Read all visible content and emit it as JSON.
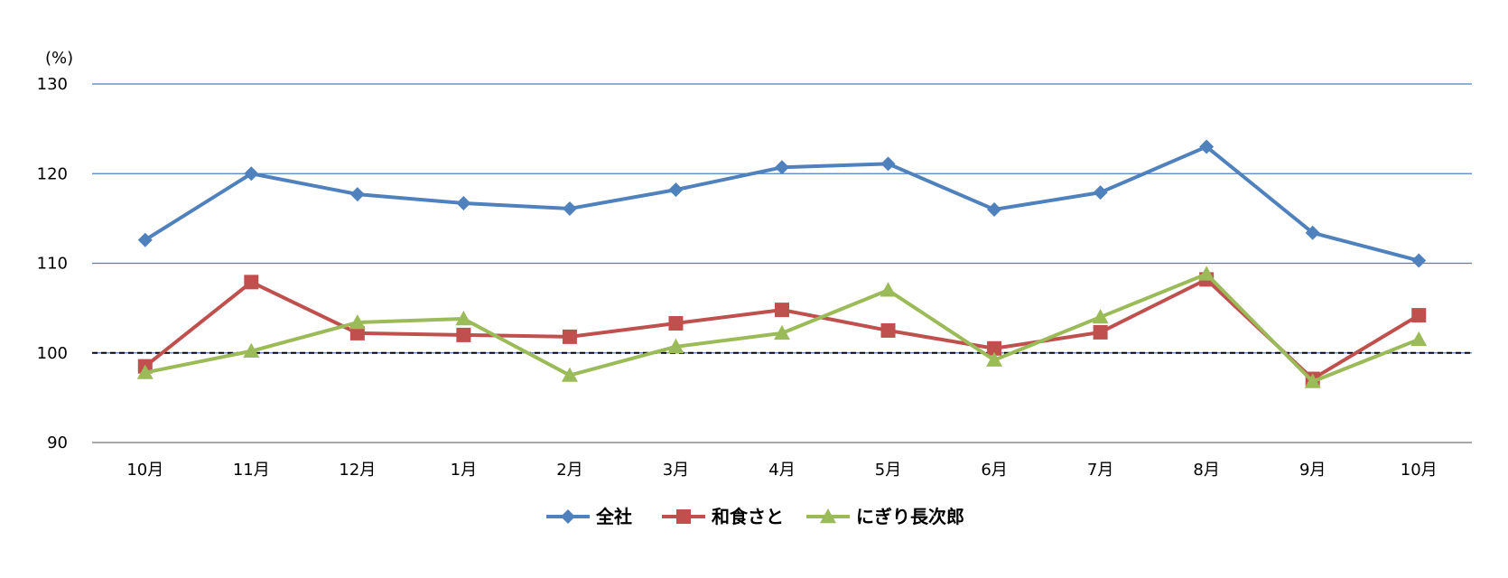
{
  "chart_data": {
    "type": "line",
    "y_unit_label": "(%)",
    "categories": [
      "10月",
      "11月",
      "12月",
      "1月",
      "2月",
      "3月",
      "4月",
      "5月",
      "6月",
      "7月",
      "8月",
      "9月",
      "10月"
    ],
    "ylim": [
      90,
      130
    ],
    "yticks": [
      90,
      100,
      110,
      120,
      130
    ],
    "reference_line": 100,
    "grid": true,
    "legend_position": "bottom",
    "series": [
      {
        "name": "全社",
        "color": "#4F81BD",
        "marker": "diamond",
        "values": [
          112.6,
          120.0,
          117.7,
          116.7,
          116.1,
          118.2,
          120.7,
          121.1,
          116.0,
          117.9,
          123.0,
          113.4,
          110.3
        ]
      },
      {
        "name": "和食さと",
        "color": "#C0504D",
        "marker": "square",
        "values": [
          98.5,
          107.9,
          102.2,
          102.0,
          101.8,
          103.3,
          104.8,
          102.5,
          100.5,
          102.3,
          108.2,
          97.1,
          104.2
        ]
      },
      {
        "name": "にぎり長次郎",
        "color": "#9BBB59",
        "marker": "triangle",
        "values": [
          97.8,
          100.2,
          103.4,
          103.8,
          97.5,
          100.7,
          102.2,
          107.0,
          99.2,
          104.0,
          108.8,
          96.8,
          101.5
        ]
      }
    ]
  }
}
